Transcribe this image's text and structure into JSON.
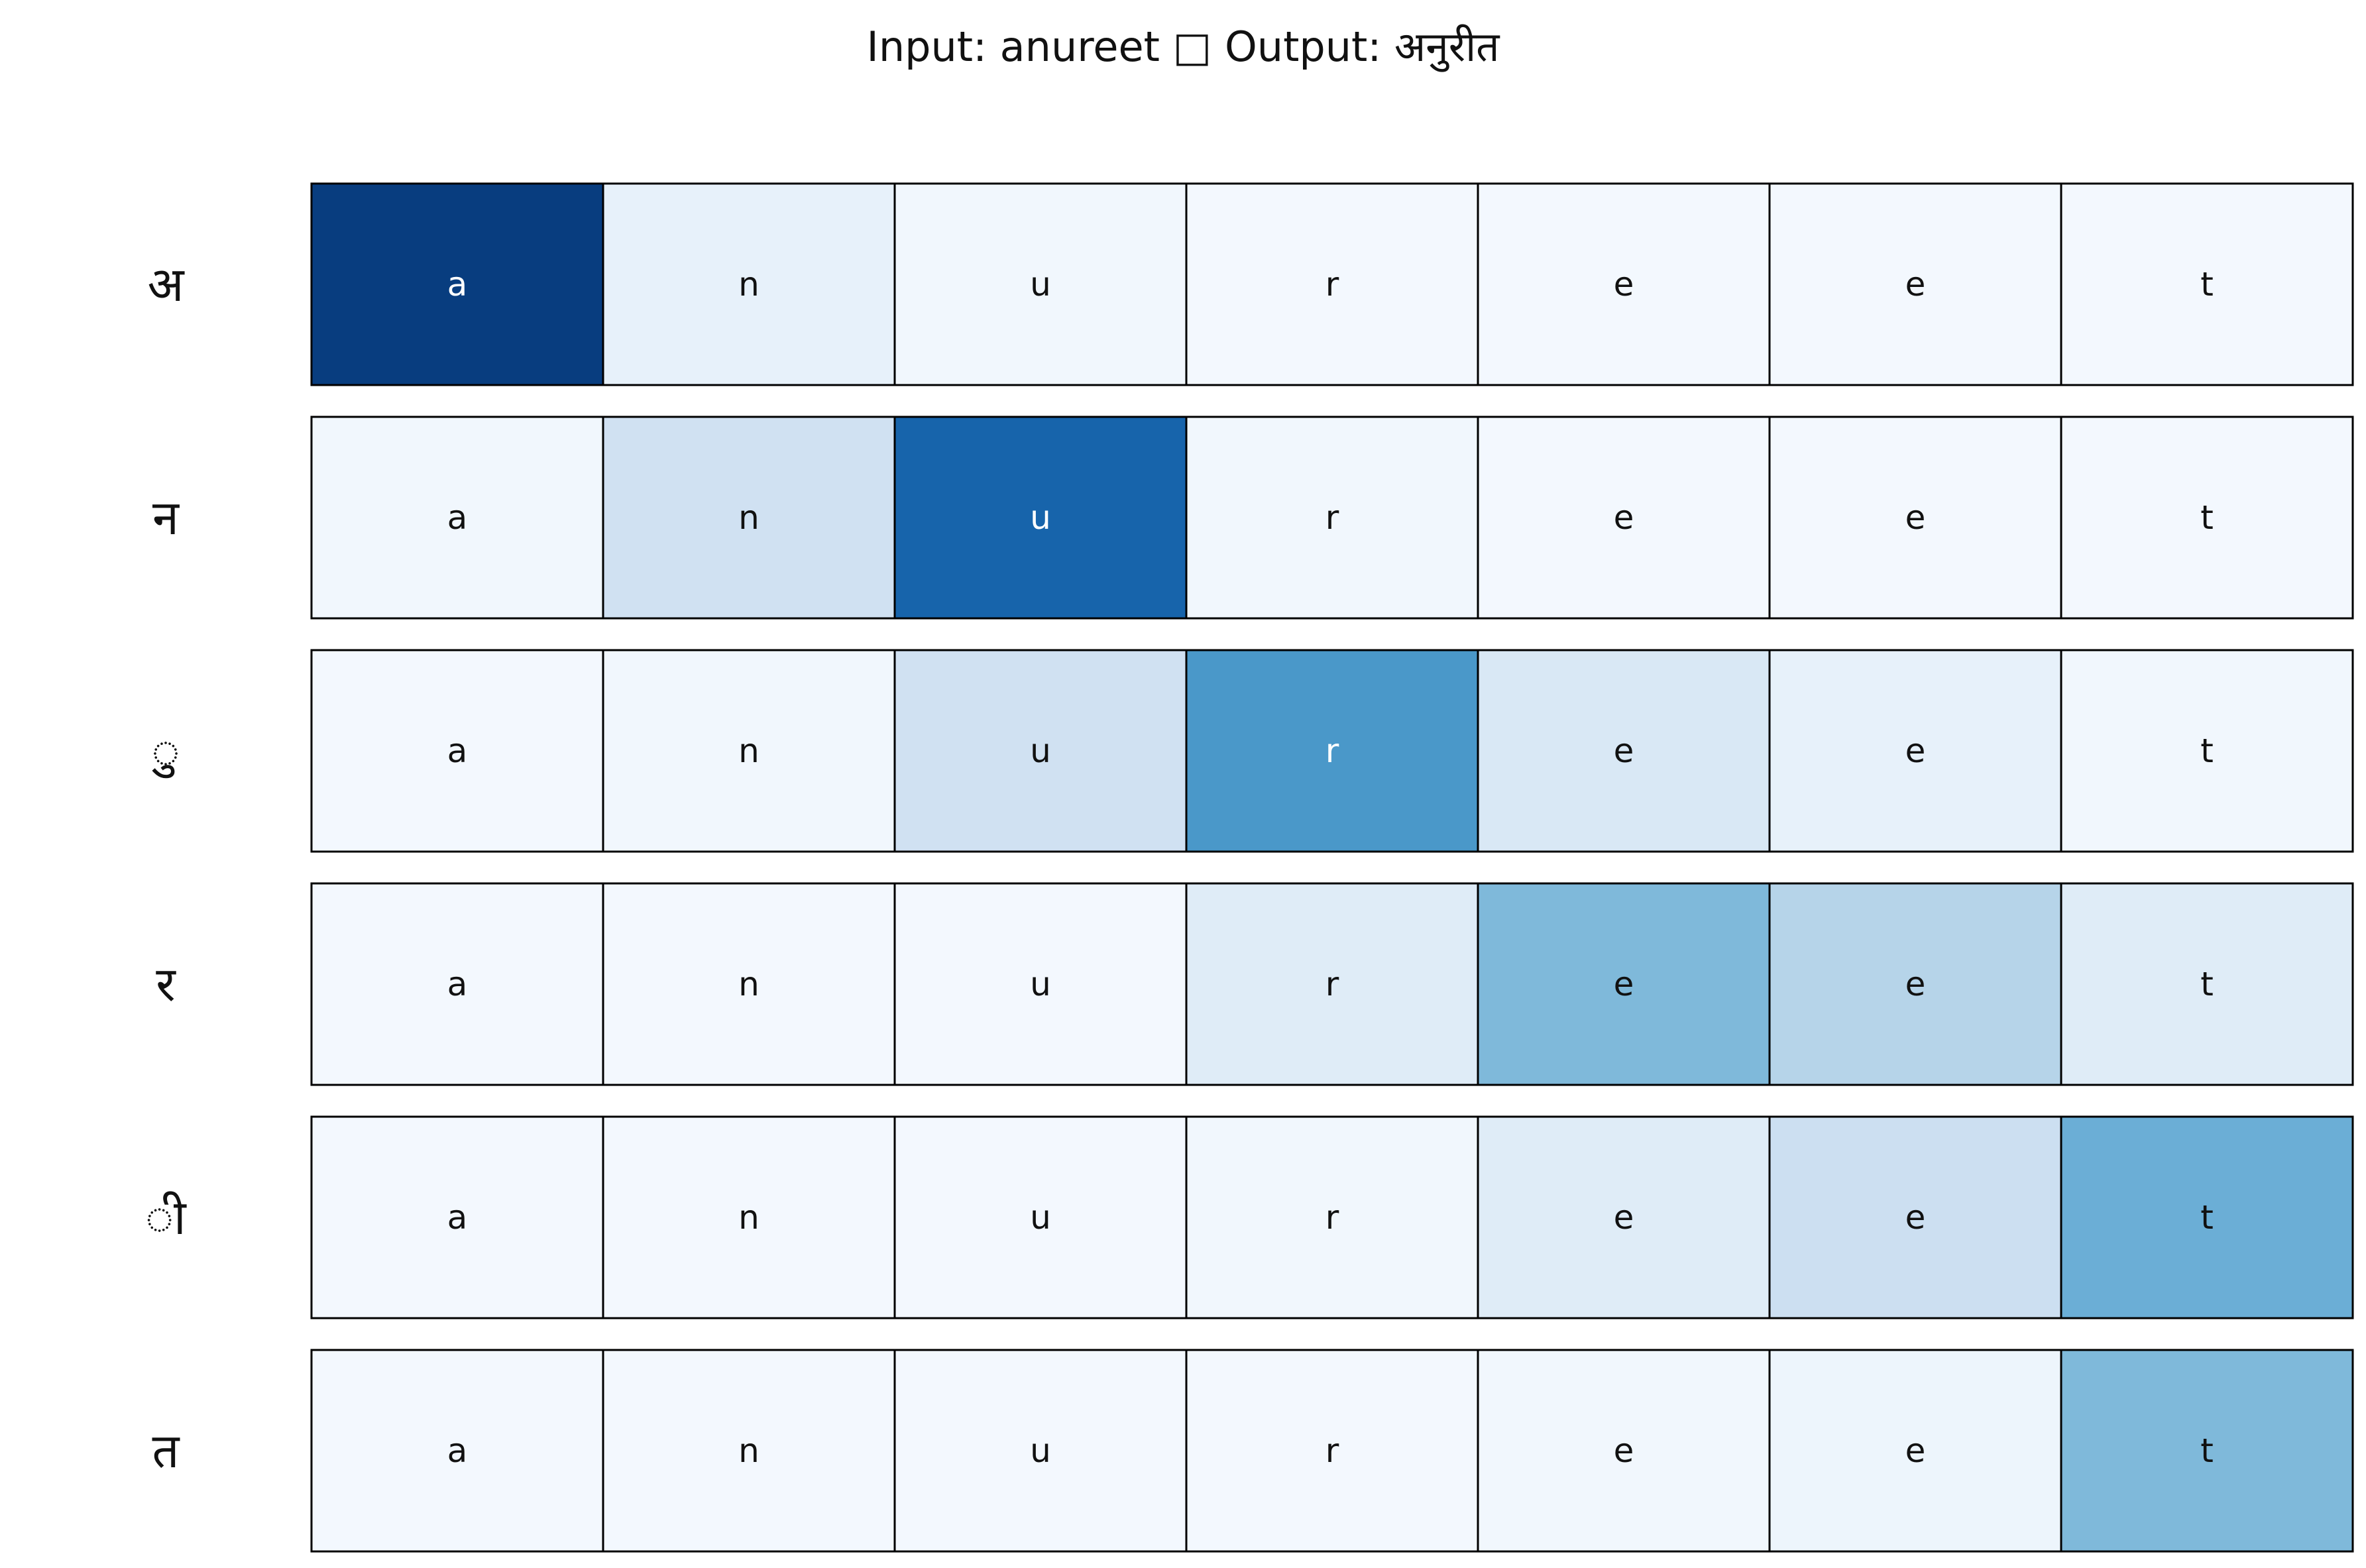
{
  "chart_data": {
    "type": "heatmap",
    "title": "Input: anureet □ Output: अनुरीत",
    "input_chars": [
      "a",
      "n",
      "u",
      "r",
      "e",
      "e",
      "t"
    ],
    "output_chars": [
      "अ",
      "न",
      "ु",
      "र",
      "ी",
      "त"
    ],
    "values": [
      [
        0.95,
        0.08,
        0.03,
        0.02,
        0.02,
        0.02,
        0.02
      ],
      [
        0.03,
        0.2,
        0.8,
        0.03,
        0.02,
        0.02,
        0.02
      ],
      [
        0.02,
        0.03,
        0.2,
        0.6,
        0.15,
        0.08,
        0.03
      ],
      [
        0.02,
        0.02,
        0.02,
        0.12,
        0.45,
        0.3,
        0.12
      ],
      [
        0.02,
        0.02,
        0.02,
        0.03,
        0.12,
        0.22,
        0.5
      ],
      [
        0.02,
        0.02,
        0.02,
        0.02,
        0.03,
        0.05,
        0.45
      ]
    ],
    "colormap": "Blues",
    "grid": false,
    "legend": "none"
  }
}
